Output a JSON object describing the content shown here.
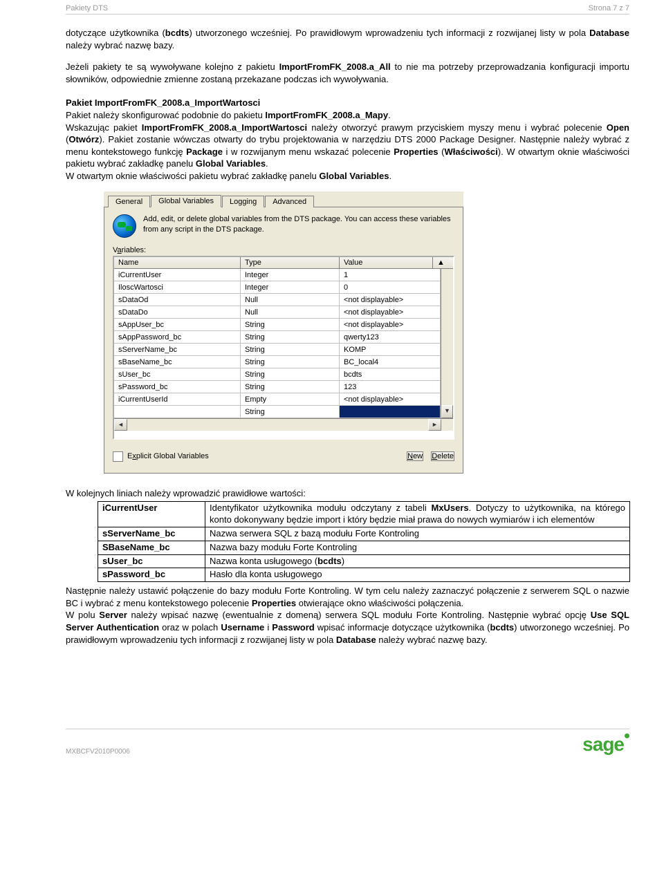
{
  "header": {
    "left": "Pakiety DTS",
    "right": "Strona 7 z 7"
  },
  "p1a": "dotyczące użytkownika (",
  "p1b": ") utworzonego wcześniej. Po prawidłowym wprowadzeniu tych informacji z rozwijanej listy w pola ",
  "p1c": " należy wybrać nazwę bazy.",
  "bcdts": "bcdts",
  "database": "Database",
  "p2a": "Jeżeli pakiety te są wywoływane kolejno z pakietu ",
  "p2b": " to nie ma potrzeby przeprowadzania konfiguracji importu słowników, odpowiednie zmienne zostaną przekazane podczas ich wywoływania.",
  "pkg_all": "ImportFromFK_2008.a_All",
  "section": "Pakiet ImportFromFK_2008.a_ImportWartosci",
  "p3a": "Pakiet należy skonfigurować podobnie do pakietu ",
  "p3b": ".",
  "pkg_mapy": "ImportFromFK_2008.a_Mapy",
  "p4a": "Wskazując pakiet ",
  "p4b": " należy otworzyć prawym przyciskiem myszy menu i wybrać polecenie ",
  "p4c": " (",
  "p4d": "). Pakiet zostanie wówczas otwarty do trybu projektowania w narzędziu DTS 2000 Package Designer. Następnie należy wybrać z menu kontekstowego funkcję ",
  "p4e": " i w rozwijanym menu wskazać polecenie ",
  "p4f": " (",
  "p4g": "). W otwartym oknie właściwości pakietu wybrać zakładkę panelu ",
  "p4h": ".",
  "pkg_iw": "ImportFromFK_2008.a_ImportWartosci",
  "open": "Open",
  "otworz": "Otwórz",
  "package": "Package",
  "properties": "Properties",
  "wlasciwosci": "Właściwości",
  "globalvars": "Global Variables",
  "p5a": "W otwartym oknie właściwości pakietu wybrać zakładkę panelu ",
  "p5b": ".",
  "dialog": {
    "tabs": [
      "General",
      "Global Variables",
      "Logging",
      "Advanced"
    ],
    "hint": "Add, edit, or delete global variables from the DTS package. You can access these variables from any script in the DTS package.",
    "vars_label_pre": "V",
    "vars_label_u": "a",
    "vars_label_post": "riables:",
    "columns": [
      "Name",
      "Type",
      "Value"
    ],
    "rows": [
      {
        "name": "iCurrentUser",
        "type": "Integer",
        "value": "1"
      },
      {
        "name": "IloscWartosci",
        "type": "Integer",
        "value": "0"
      },
      {
        "name": "sDataOd",
        "type": "Null",
        "value": "<not displayable>"
      },
      {
        "name": "sDataDo",
        "type": "Null",
        "value": "<not displayable>"
      },
      {
        "name": "sAppUser_bc",
        "type": "String",
        "value": "<not displayable>"
      },
      {
        "name": "sAppPassword_bc",
        "type": "String",
        "value": "qwerty123"
      },
      {
        "name": "sServerName_bc",
        "type": "String",
        "value": "KOMP"
      },
      {
        "name": "sBaseName_bc",
        "type": "String",
        "value": "BC_local4"
      },
      {
        "name": "sUser_bc",
        "type": "String",
        "value": "bcdts"
      },
      {
        "name": "sPassword_bc",
        "type": "String",
        "value": "123"
      },
      {
        "name": "iCurrentUserId",
        "type": "Empty",
        "value": "<not displayable>"
      },
      {
        "name": "",
        "type": "String",
        "value": "",
        "sel": true
      }
    ],
    "chk_pre": "E",
    "chk_u": "x",
    "chk_post": "plicit Global Variables",
    "btn_new_u": "N",
    "btn_new_rest": "ew",
    "btn_del_u": "D",
    "btn_del_rest": "elete"
  },
  "p6": "W kolejnych liniach należy wprowadzić prawidłowe wartości:",
  "params": [
    {
      "k": "iCurrentUser",
      "v": "Identyfikator użytkownika modułu odczytany z tabeli ",
      "vb": "MxUsers",
      "v2": ". Dotyczy to użytkownika, na którego konto dokonywany będzie import i który będzie miał prawa do nowych wymiarów i ich elementów"
    },
    {
      "k": "sServerName_bc",
      "v": "Nazwa serwera SQL z bazą modułu Forte Kontroling"
    },
    {
      "k": "SBaseName_bc",
      "v": "Nazwa bazy modułu Forte Kontroling"
    },
    {
      "k": "sUser_bc",
      "v": "Nazwa konta usługowego (",
      "vb": "bcdts",
      "v2": ")"
    },
    {
      "k": "sPassword_bc",
      "v": "Hasło dla konta usługowego"
    }
  ],
  "p7a": "Następnie należy ustawić połączenie do bazy modułu Forte Kontroling. W tym celu należy zaznaczyć połączenie z serwerem SQL o nazwie BC i wybrać z menu kontekstowego polecenie ",
  "p7b": " otwierające okno właściwości połączenia.",
  "p8a": "W polu ",
  "p8b": " należy wpisać nazwę (ewentualnie z domeną) serwera SQL modułu Forte Kontroling. Następnie wybrać opcję ",
  "p8c": " oraz w polach ",
  "p8d": " i ",
  "p8e": " wpisać informacje dotyczące użytkownika (",
  "p8f": ") utworzonego wcześniej. Po prawidłowym wprowadzeniu tych informacji z rozwijanej listy w pola ",
  "p8g": " należy wybrać nazwę bazy.",
  "server": "Server",
  "usesql": "Use SQL Server Authentication",
  "username": "Username",
  "password": "Password",
  "footer": "MXBCFV2010P0006",
  "logo": "sage"
}
